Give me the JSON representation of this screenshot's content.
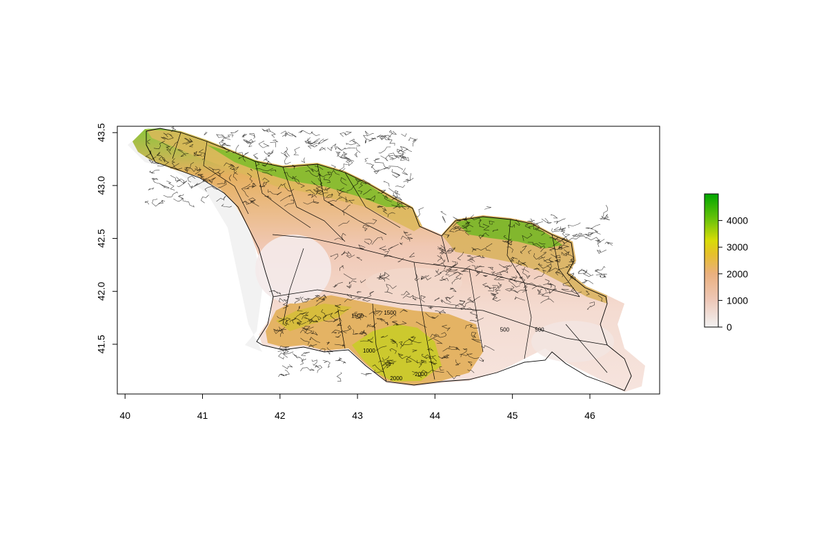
{
  "chart_data": {
    "type": "heatmap",
    "title": "",
    "xlabel": "",
    "ylabel": "",
    "xlim": [
      39.9,
      46.9
    ],
    "ylim": [
      41.03,
      43.56
    ],
    "x_ticks": [
      40,
      41,
      42,
      43,
      44,
      45,
      46
    ],
    "y_ticks": [
      41.5,
      42.0,
      42.5,
      43.0,
      43.5
    ],
    "x_tick_labels": [
      "40",
      "41",
      "42",
      "43",
      "44",
      "45",
      "46"
    ],
    "y_tick_labels": [
      "41.5",
      "42.0",
      "42.5",
      "43.0",
      "43.5"
    ],
    "legend": {
      "type": "colorbar",
      "position": "right",
      "range": [
        0,
        5000
      ],
      "ticks": [
        0,
        1000,
        2000,
        3000,
        4000
      ],
      "tick_labels": [
        "0",
        "1000",
        "2000",
        "3000",
        "4000"
      ],
      "colors": [
        "#f2f2f2",
        "#eec8b8",
        "#eab07e",
        "#e6c02a",
        "#b8d608",
        "#5cbe0a",
        "#00a600"
      ]
    },
    "contour_labels": [
      {
        "text": "1500",
        "x": 43.0,
        "y": 41.75
      },
      {
        "text": "1500",
        "x": 43.42,
        "y": 41.78
      },
      {
        "text": "2000",
        "x": 43.5,
        "y": 41.16
      },
      {
        "text": "1000",
        "x": 43.15,
        "y": 41.42
      },
      {
        "text": "2000",
        "x": 43.82,
        "y": 41.2
      },
      {
        "text": "500",
        "x": 44.9,
        "y": 41.62
      },
      {
        "text": "500",
        "x": 45.35,
        "y": 41.62
      }
    ],
    "grid": false
  }
}
